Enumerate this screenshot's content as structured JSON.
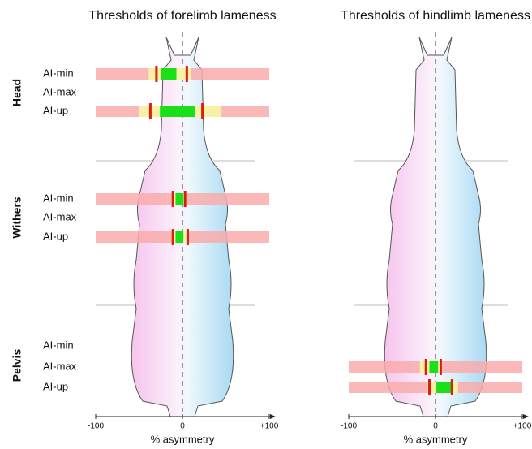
{
  "chart_data": {
    "type": "threshold",
    "groups": [
      {
        "name": "Head",
        "metrics": [
          "AI-min",
          "AI-max",
          "AI-up"
        ]
      },
      {
        "name": "Withers",
        "metrics": [
          "AI-min",
          "AI-max",
          "AI-up"
        ]
      },
      {
        "name": "Pelvis",
        "metrics": [
          "AI-min",
          "AI-max",
          "AI-up"
        ]
      }
    ],
    "colors": {
      "range": "#f9abab",
      "yellow": "#f6f1a6",
      "green": "#19e019",
      "red": "#e01b10"
    },
    "panels": [
      {
        "title": "Thresholds of forelimb lameness",
        "xlabel": "% asymmetry",
        "xlim": [
          -100,
          100
        ],
        "xticks": [
          {
            "value": -100,
            "label": "-100"
          },
          0,
          {
            "value": 100,
            "label": "+100"
          }
        ],
        "thresholds": [
          [
            {
              "yellow": [
                -39,
                10
              ],
              "green": [
                -25,
                -7
              ],
              "red": [
                -30,
                5
              ]
            },
            null,
            {
              "yellow": [
                -50,
                45
              ],
              "green": [
                -26,
                14
              ],
              "red": [
                -37,
                23
              ]
            }
          ],
          [
            {
              "yellow": [
                -12,
                5
              ],
              "green": [
                -8,
                1
              ],
              "red": [
                -11,
                3
              ]
            },
            null,
            {
              "yellow": [
                -12,
                7
              ],
              "green": [
                -8,
                1
              ],
              "red": [
                -11,
                6
              ]
            }
          ],
          [
            null,
            null,
            null
          ]
        ]
      },
      {
        "title": "Thresholds of hindlimb lameness",
        "xlabel": "% asymmetry",
        "xlim": [
          -100,
          100
        ],
        "xticks": [
          {
            "value": -100,
            "label": "-100"
          },
          0,
          {
            "value": 100,
            "label": "+100"
          }
        ],
        "thresholds": [
          [
            null,
            null,
            null
          ],
          [
            null,
            null,
            null
          ],
          [
            null,
            {
              "yellow": [
                -18,
                7
              ],
              "green": [
                -7,
                3
              ],
              "red": [
                -11,
                6
              ]
            },
            {
              "yellow": [
                -9,
                26
              ],
              "green": [
                1,
                18
              ],
              "red": [
                -7,
                19
              ]
            }
          ]
        ]
      }
    ]
  }
}
